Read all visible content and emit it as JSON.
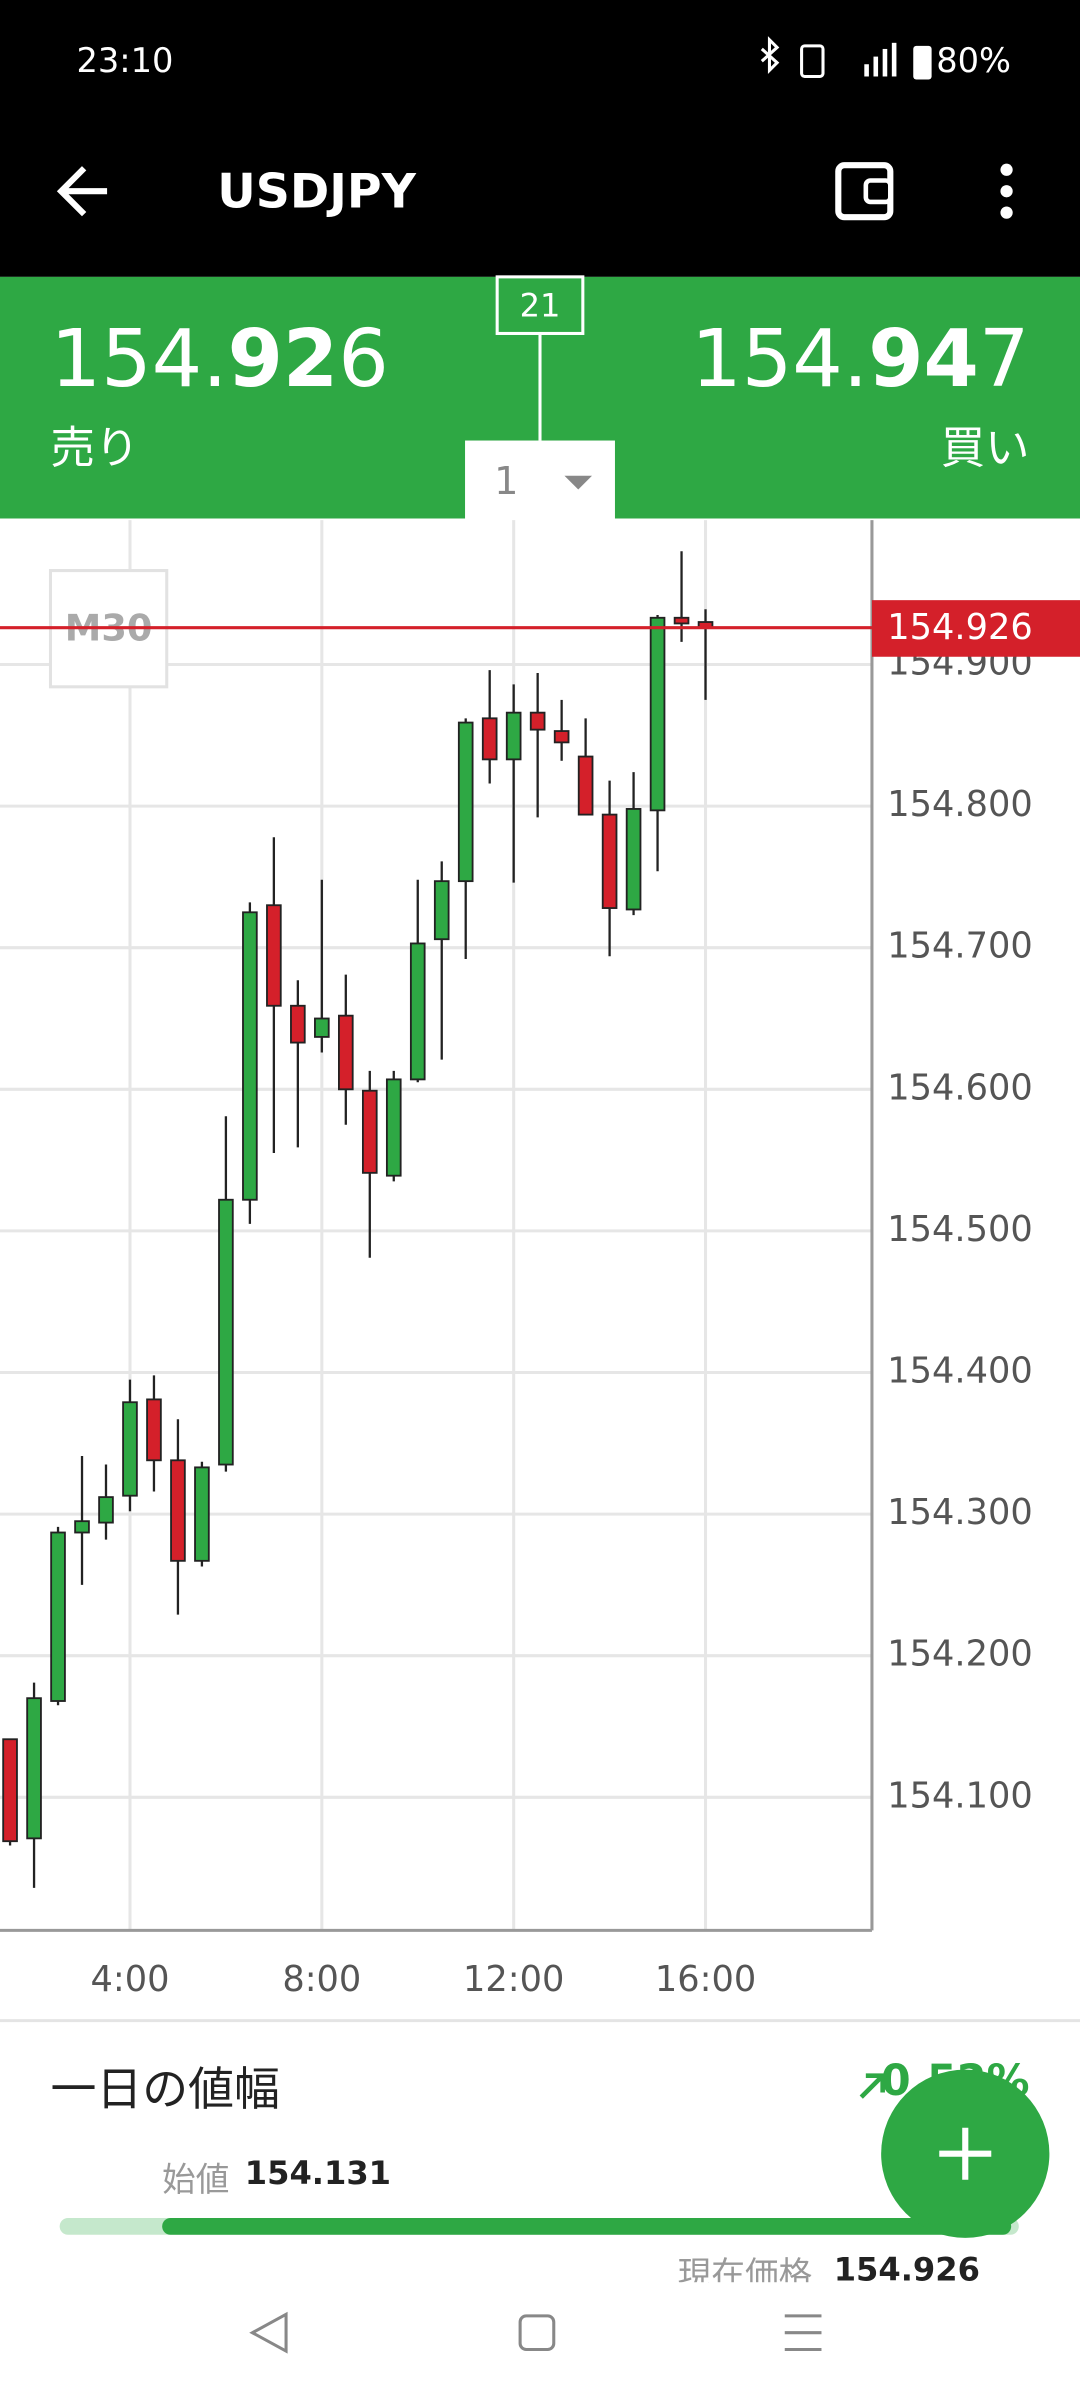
{
  "status_bar": {
    "time": "23:10",
    "battery": "80%"
  },
  "header": {
    "title": "USDJPY"
  },
  "quote": {
    "bid": {
      "parts": [
        "154.",
        "92",
        "6"
      ],
      "label": "売り"
    },
    "ask": {
      "parts": [
        "154.",
        "94",
        "7"
      ],
      "label": "買い"
    },
    "spread": "21",
    "lot": "1"
  },
  "chart_data": {
    "type": "candlestick",
    "period": "M30",
    "x": [
      1.5,
      2,
      2.5,
      3,
      3.5,
      4,
      4.5,
      5,
      5.5,
      6,
      6.5,
      7,
      7.5,
      8,
      8.5,
      9,
      9.5,
      10,
      10.5,
      11,
      11.5,
      12,
      12.5,
      13,
      13.5,
      14,
      14.5,
      15,
      15.5,
      16
    ],
    "open": [
      154.141,
      154.071,
      154.168,
      154.287,
      154.294,
      154.313,
      154.381,
      154.338,
      154.267,
      154.335,
      154.522,
      154.73,
      154.659,
      154.637,
      154.652,
      154.599,
      154.539,
      154.607,
      154.706,
      154.747,
      154.862,
      154.833,
      154.866,
      154.853,
      154.835,
      154.794,
      154.727,
      154.797,
      154.933,
      154.93
    ],
    "high": [
      154.141,
      154.181,
      154.291,
      154.341,
      154.335,
      154.395,
      154.398,
      154.367,
      154.337,
      154.581,
      154.732,
      154.778,
      154.677,
      154.748,
      154.681,
      154.613,
      154.613,
      154.748,
      154.761,
      154.862,
      154.896,
      154.886,
      154.894,
      154.875,
      154.862,
      154.818,
      154.824,
      154.935,
      154.98,
      154.939
    ],
    "low": [
      154.066,
      154.036,
      154.165,
      154.25,
      154.282,
      154.302,
      154.316,
      154.229,
      154.263,
      154.33,
      154.505,
      154.555,
      154.559,
      154.626,
      154.575,
      154.481,
      154.535,
      154.605,
      154.621,
      154.692,
      154.816,
      154.746,
      154.792,
      154.832,
      154.794,
      154.694,
      154.723,
      154.754,
      154.916,
      154.875
    ],
    "close": [
      154.069,
      154.17,
      154.287,
      154.295,
      154.312,
      154.379,
      154.338,
      154.267,
      154.333,
      154.522,
      154.725,
      154.659,
      154.633,
      154.65,
      154.6,
      154.541,
      154.607,
      154.703,
      154.747,
      154.859,
      154.833,
      154.866,
      154.854,
      154.845,
      154.794,
      154.728,
      154.798,
      154.933,
      154.929,
      154.926
    ],
    "up_color": "#2ea844",
    "down_color": "#d4202a",
    "xlim": [
      1.29,
      19.47
    ],
    "xticks": [
      {
        "value": 4,
        "label": "4:00"
      },
      {
        "value": 8,
        "label": "8:00"
      },
      {
        "value": 12,
        "label": "12:00"
      },
      {
        "value": 16,
        "label": "16:00"
      }
    ],
    "ylim": [
      154.006,
      155.002
    ],
    "yticks": [
      {
        "value": 154.1,
        "label": "154.100"
      },
      {
        "value": 154.2,
        "label": "154.200"
      },
      {
        "value": 154.3,
        "label": "154.300"
      },
      {
        "value": 154.4,
        "label": "154.400"
      },
      {
        "value": 154.5,
        "label": "154.500"
      },
      {
        "value": 154.6,
        "label": "154.600"
      },
      {
        "value": 154.7,
        "label": "154.700"
      },
      {
        "value": 154.8,
        "label": "154.800"
      },
      {
        "value": 154.9,
        "label": "154.900"
      }
    ],
    "grid": true,
    "current_price": 154.926,
    "current_color": "#d4202a"
  },
  "daily_range": {
    "title": "一日の値幅",
    "change": "0.52%",
    "open_label": "始値",
    "open": "154.131",
    "current_label": "現在価格",
    "current": "154.926"
  }
}
